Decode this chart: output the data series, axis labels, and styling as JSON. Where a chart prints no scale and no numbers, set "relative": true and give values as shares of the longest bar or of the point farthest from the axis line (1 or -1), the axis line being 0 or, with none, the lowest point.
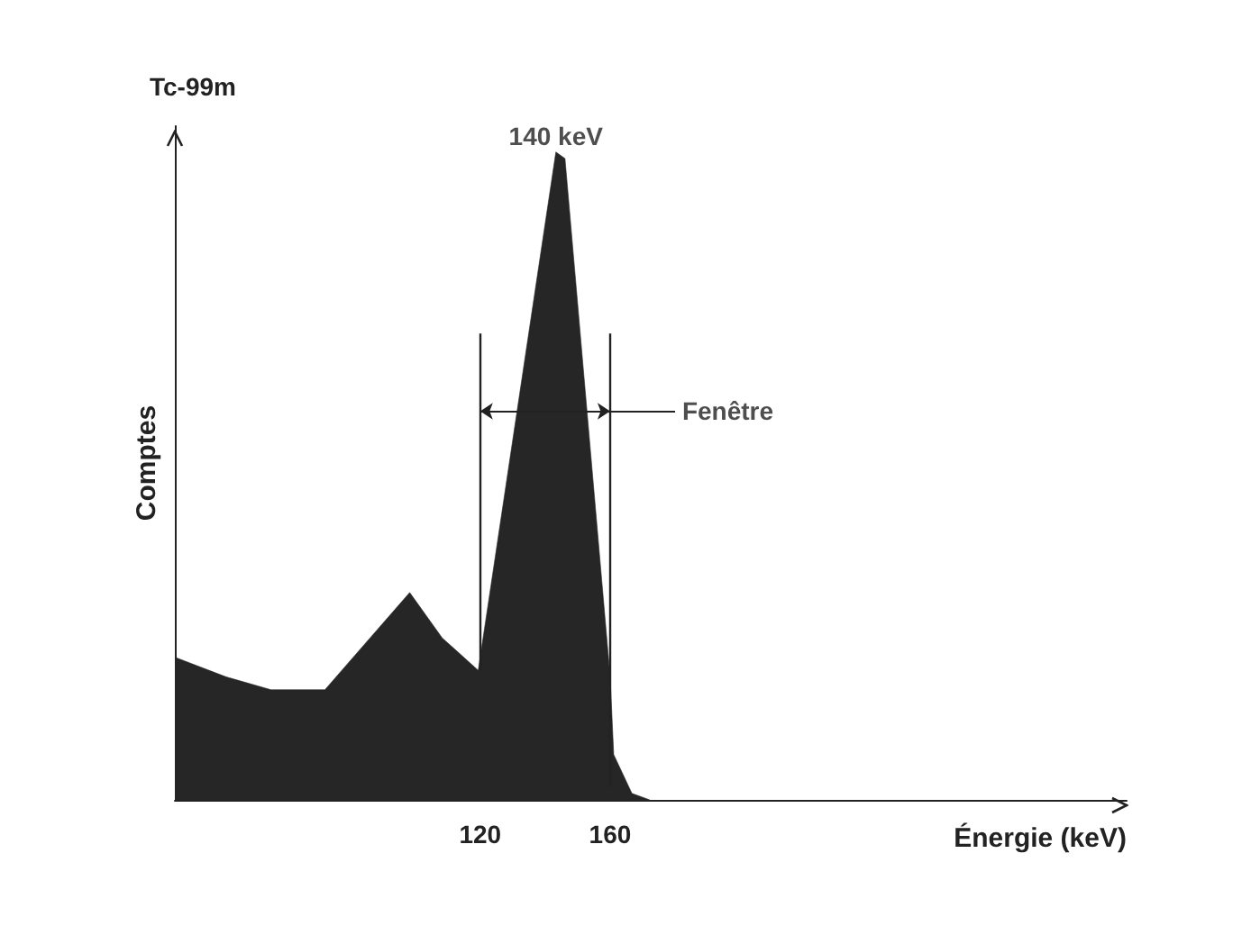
{
  "chart_data": {
    "type": "area",
    "title": "Tc-99m",
    "xlabel": "Énergie (keV)",
    "ylabel": "Comptes",
    "relative": true,
    "color": "#262626",
    "x": [
      26.1,
      41.7,
      55.6,
      72.2,
      86.1,
      98.3,
      108.3,
      119.4,
      143.3,
      146.1,
      160,
      161.1,
      166.7,
      172.2
    ],
    "values": [
      0.22,
      0.19,
      0.17,
      0.17,
      0.25,
      0.32,
      0.25,
      0.2,
      1,
      0.99,
      0.19,
      0.07,
      0.01,
      0
    ],
    "xlim": [
      26,
      319
    ],
    "xticks": [
      120,
      160
    ],
    "ref_lines": [
      {
        "axis": "x",
        "value": 120
      },
      {
        "axis": "x",
        "value": 160
      }
    ],
    "annotations": [
      {
        "text": "140 keV",
        "x": 143.3,
        "y": 1
      },
      {
        "text": "Fenêtre",
        "x": 160,
        "y": 0.6
      }
    ],
    "grid": false
  }
}
